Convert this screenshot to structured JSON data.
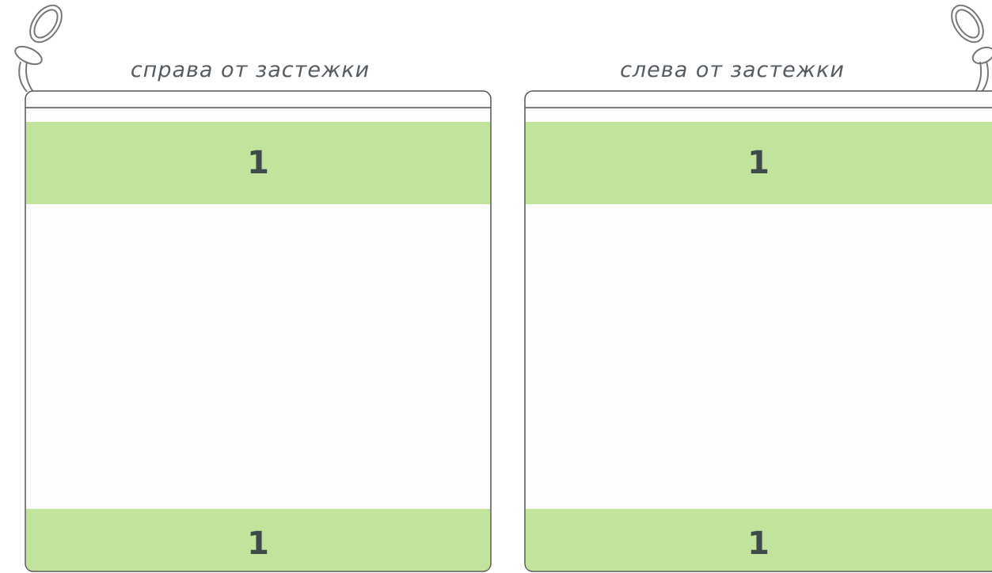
{
  "panels": [
    {
      "caption": "справа от застежки",
      "zones": [
        {
          "label": "1"
        },
        {
          "label": "1"
        }
      ]
    },
    {
      "caption": "слева от застежки",
      "zones": [
        {
          "label": "1"
        },
        {
          "label": "1"
        }
      ]
    }
  ]
}
